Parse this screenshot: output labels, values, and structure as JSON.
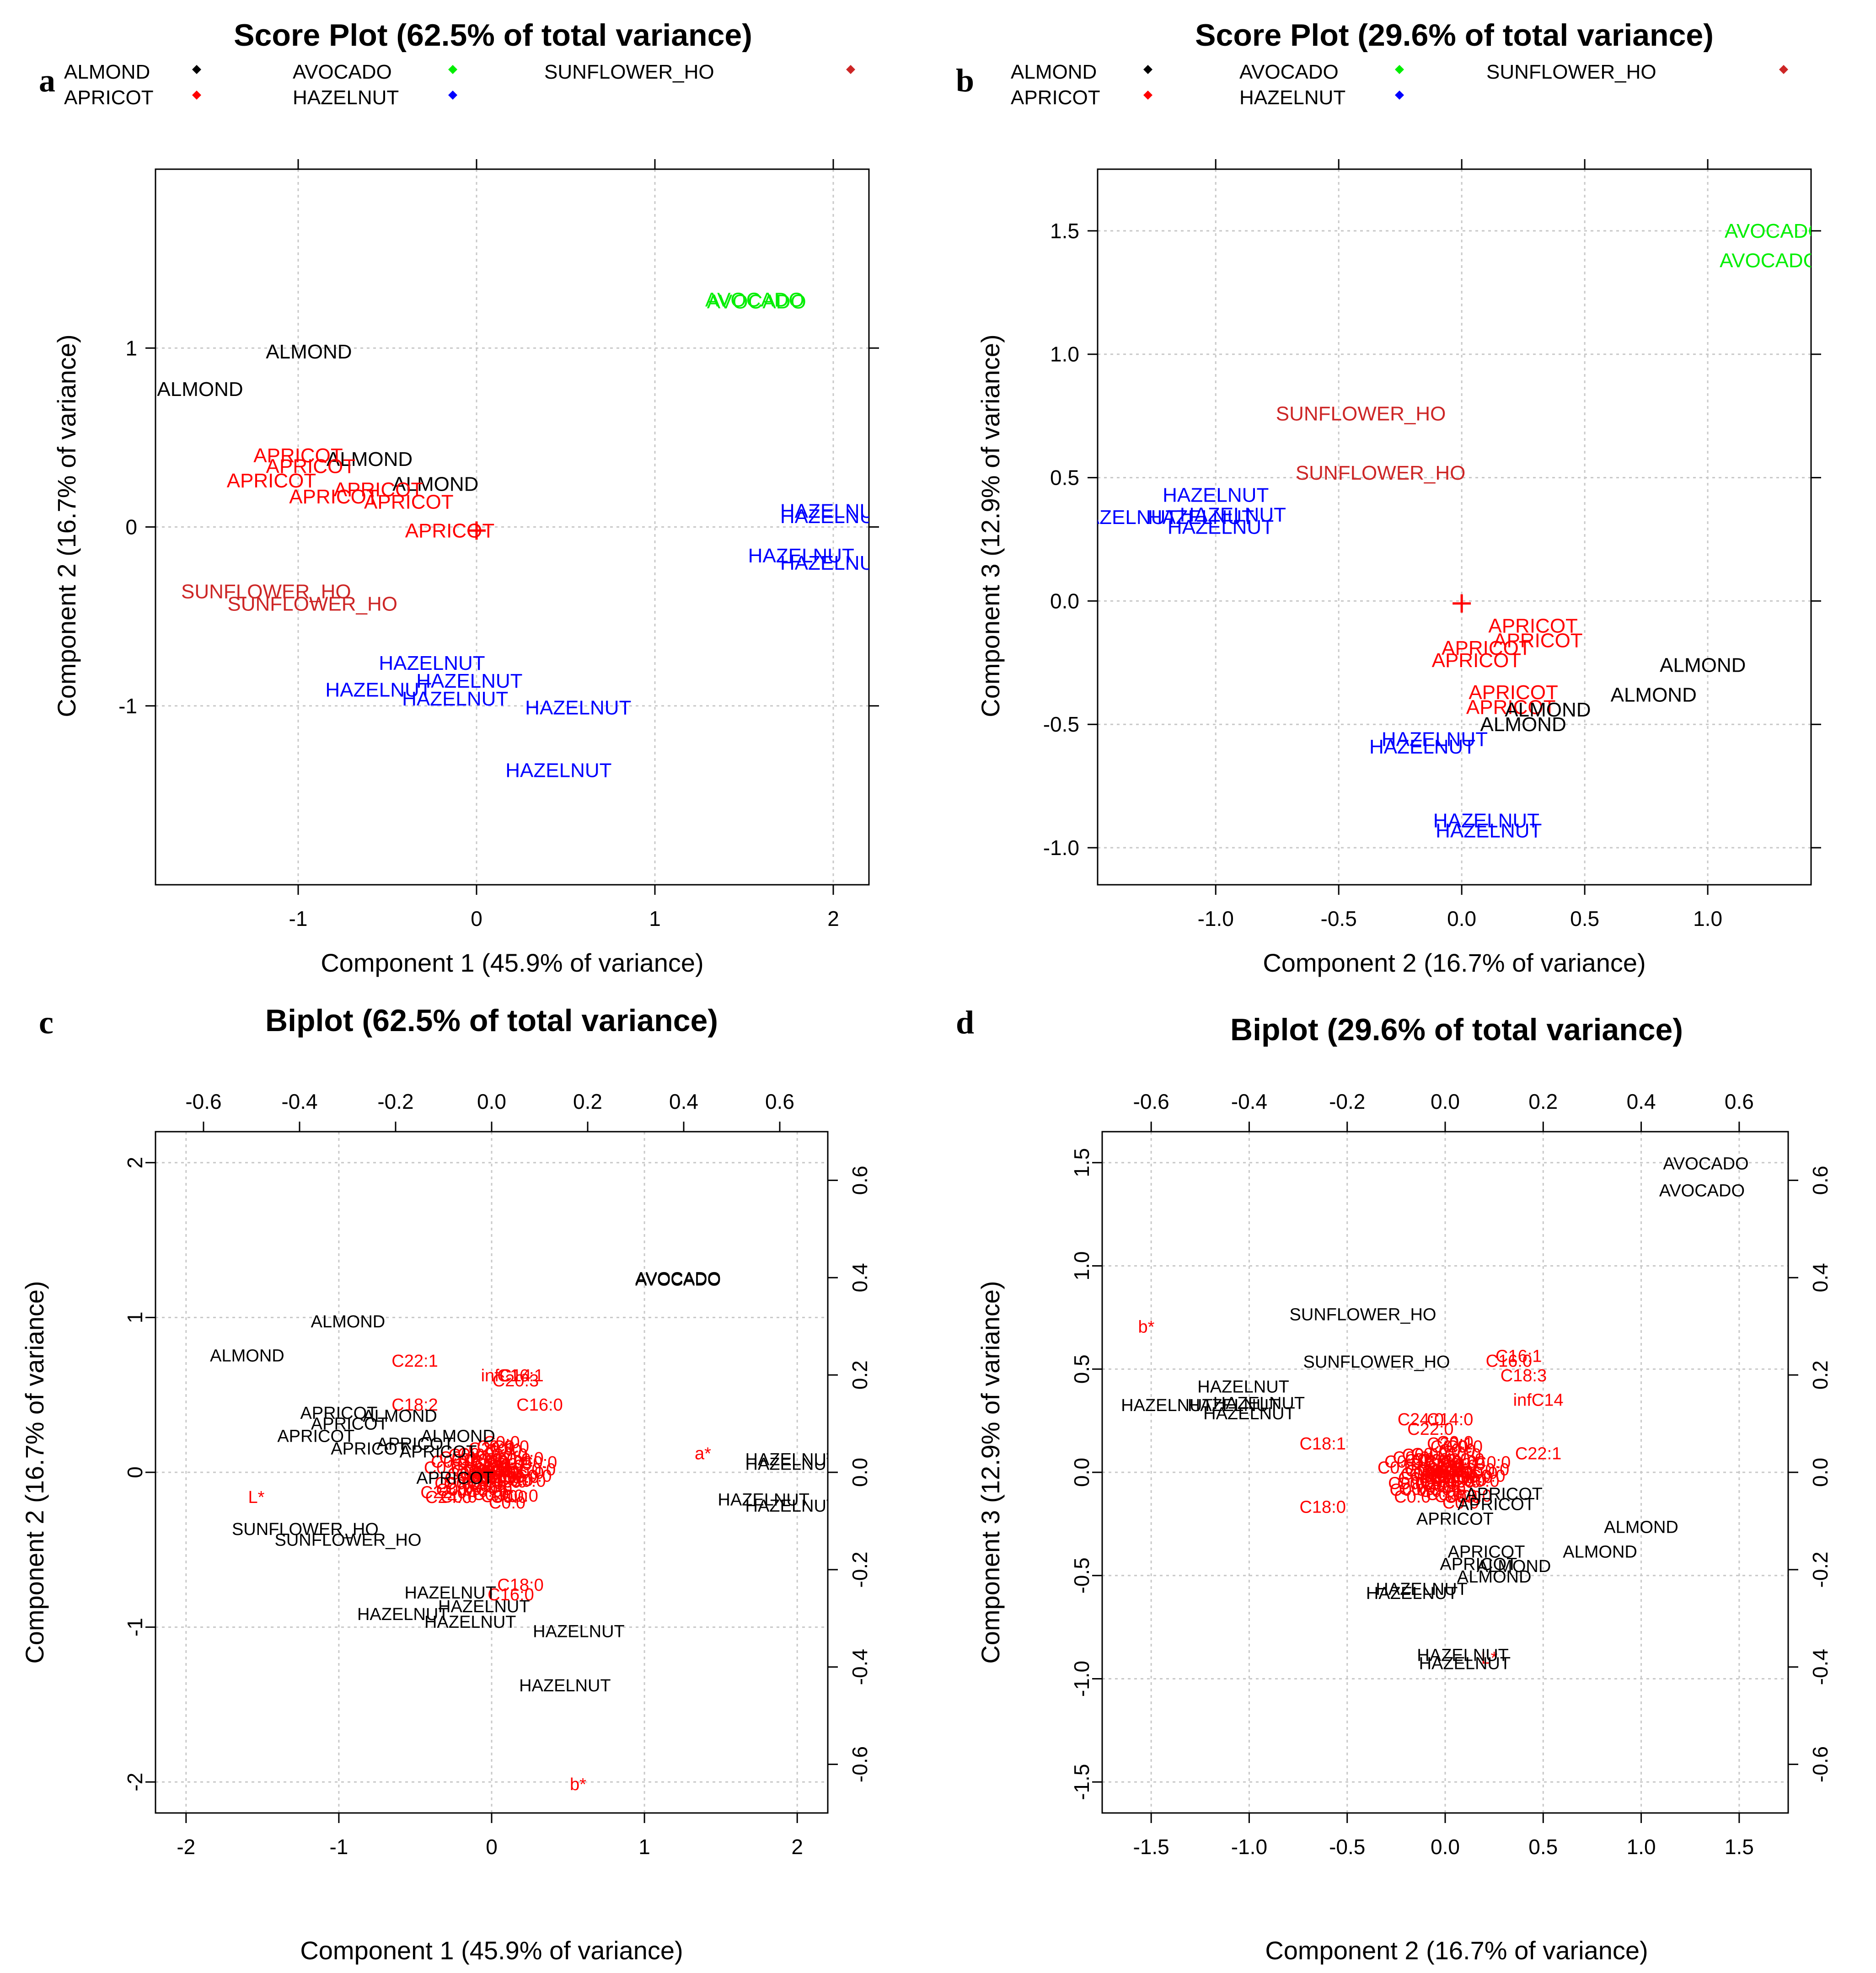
{
  "colors": {
    "ALMOND": "#000000",
    "APRICOT": "#ff0000",
    "AVOCADO": "#00ee00",
    "HAZELNUT": "#0000ff",
    "SUNFLOWER_HO": "#cd2626",
    "loading": "#ff0000",
    "biplot_scores": "#000000",
    "grid": "#c8c8c8"
  },
  "legend_entries": [
    "ALMOND",
    "APRICOT",
    "AVOCADO",
    "HAZELNUT",
    "SUNFLOWER_HO"
  ],
  "chart_data": [
    {
      "id": "a",
      "panel_letter": "a",
      "type": "scatter",
      "title": "Score Plot (62.5% of total variance)",
      "xlabel": "Component 1 (45.9% of variance)",
      "ylabel": "Component 2 (16.7% of variance)",
      "xlim": [
        -1.8,
        2.2
      ],
      "ylim": [
        -2.0,
        2.0
      ],
      "xticks": [
        -1,
        0,
        1,
        2
      ],
      "yticks": [
        -1,
        0,
        1
      ],
      "grid": true,
      "legend": true,
      "points": [
        {
          "label": "AVOCADO",
          "group": "AVOCADO",
          "x": 1.56,
          "y": 1.27
        },
        {
          "label": "AVOCADO",
          "group": "AVOCADO",
          "x": 1.57,
          "y": 1.26
        },
        {
          "label": "ALMOND",
          "group": "ALMOND",
          "x": -0.94,
          "y": 0.98
        },
        {
          "label": "ALMOND",
          "group": "ALMOND",
          "x": -1.55,
          "y": 0.77
        },
        {
          "label": "ALMOND",
          "group": "ALMOND",
          "x": -0.6,
          "y": 0.38
        },
        {
          "label": "ALMOND",
          "group": "ALMOND",
          "x": -0.23,
          "y": 0.24
        },
        {
          "label": "APRICOT",
          "group": "APRICOT",
          "x": -1.0,
          "y": 0.4
        },
        {
          "label": "APRICOT",
          "group": "APRICOT",
          "x": -0.93,
          "y": 0.34
        },
        {
          "label": "APRICOT",
          "group": "APRICOT",
          "x": -1.15,
          "y": 0.26
        },
        {
          "label": "APRICOT",
          "group": "APRICOT",
          "x": -0.8,
          "y": 0.17
        },
        {
          "label": "APRICOT",
          "group": "APRICOT",
          "x": -0.55,
          "y": 0.21
        },
        {
          "label": "APRICOT",
          "group": "APRICOT",
          "x": -0.38,
          "y": 0.14
        },
        {
          "label": "APRICOT",
          "group": "APRICOT",
          "x": -0.15,
          "y": -0.02
        },
        {
          "label": "HAZELNUT",
          "group": "HAZELNUT",
          "x": 2.0,
          "y": 0.09
        },
        {
          "label": "HAZELNUT",
          "group": "HAZELNUT",
          "x": 2.0,
          "y": 0.06
        },
        {
          "label": "HAZELNUT",
          "group": "HAZELNUT",
          "x": 1.82,
          "y": -0.16
        },
        {
          "label": "HAZELNUT",
          "group": "HAZELNUT",
          "x": 2.0,
          "y": -0.2
        },
        {
          "label": "HAZELNUT",
          "group": "HAZELNUT",
          "x": -0.25,
          "y": -0.76
        },
        {
          "label": "HAZELNUT",
          "group": "HAZELNUT",
          "x": -0.04,
          "y": -0.86
        },
        {
          "label": "HAZELNUT",
          "group": "HAZELNUT",
          "x": -0.55,
          "y": -0.91
        },
        {
          "label": "HAZELNUT",
          "group": "HAZELNUT",
          "x": -0.12,
          "y": -0.96
        },
        {
          "label": "HAZELNUT",
          "group": "HAZELNUT",
          "x": 0.57,
          "y": -1.01
        },
        {
          "label": "HAZELNUT",
          "group": "HAZELNUT",
          "x": 0.46,
          "y": -1.36
        },
        {
          "label": "SUNFLOWER_HO",
          "group": "SUNFLOWER_HO",
          "x": -1.18,
          "y": -0.36
        },
        {
          "label": "SUNFLOWER_HO",
          "group": "SUNFLOWER_HO",
          "x": -0.92,
          "y": -0.43
        }
      ],
      "centroid": {
        "x": 0.0,
        "y": -0.02
      }
    },
    {
      "id": "b",
      "panel_letter": "b",
      "type": "scatter",
      "title": "Score Plot (29.6% of total variance)",
      "xlabel": "Component 2 (16.7% of variance)",
      "ylabel": "Component 3 (12.9% of variance)",
      "xlim": [
        -1.48,
        1.42
      ],
      "ylim": [
        -1.15,
        1.75
      ],
      "xticks": [
        -1.0,
        -0.5,
        0.0,
        0.5,
        1.0
      ],
      "yticks": [
        -1.0,
        -0.5,
        0.0,
        0.5,
        1.0,
        1.5
      ],
      "grid": true,
      "legend": true,
      "points": [
        {
          "label": "AVOCADO",
          "group": "AVOCADO",
          "x": 1.27,
          "y": 1.5
        },
        {
          "label": "AVOCADO",
          "group": "AVOCADO",
          "x": 1.25,
          "y": 1.38
        },
        {
          "label": "SUNFLOWER_HO",
          "group": "SUNFLOWER_HO",
          "x": -0.41,
          "y": 0.76
        },
        {
          "label": "SUNFLOWER_HO",
          "group": "SUNFLOWER_HO",
          "x": -0.33,
          "y": 0.52
        },
        {
          "label": "HAZELNUT",
          "group": "HAZELNUT",
          "x": -1.0,
          "y": 0.43
        },
        {
          "label": "HAZELNUT",
          "group": "HAZELNUT",
          "x": -1.37,
          "y": 0.34
        },
        {
          "label": "HAZELNUT",
          "group": "HAZELNUT",
          "x": -1.06,
          "y": 0.34
        },
        {
          "label": "HAZELNUT",
          "group": "HAZELNUT",
          "x": -0.93,
          "y": 0.35
        },
        {
          "label": "HAZELNUT",
          "group": "HAZELNUT",
          "x": -0.98,
          "y": 0.3
        },
        {
          "label": "HAZELNUT",
          "group": "HAZELNUT",
          "x": -0.11,
          "y": -0.56
        },
        {
          "label": "HAZELNUT",
          "group": "HAZELNUT",
          "x": -0.16,
          "y": -0.59
        },
        {
          "label": "HAZELNUT",
          "group": "HAZELNUT",
          "x": 0.1,
          "y": -0.89
        },
        {
          "label": "HAZELNUT",
          "group": "HAZELNUT",
          "x": 0.11,
          "y": -0.93
        },
        {
          "label": "APRICOT",
          "group": "APRICOT",
          "x": 0.29,
          "y": -0.1
        },
        {
          "label": "APRICOT",
          "group": "APRICOT",
          "x": 0.31,
          "y": -0.16
        },
        {
          "label": "APRICOT",
          "group": "APRICOT",
          "x": 0.1,
          "y": -0.19
        },
        {
          "label": "APRICOT",
          "group": "APRICOT",
          "x": 0.06,
          "y": -0.24
        },
        {
          "label": "APRICOT",
          "group": "APRICOT",
          "x": 0.21,
          "y": -0.37
        },
        {
          "label": "APRICOT",
          "group": "APRICOT",
          "x": 0.2,
          "y": -0.43
        },
        {
          "label": "ALMOND",
          "group": "ALMOND",
          "x": 0.98,
          "y": -0.26
        },
        {
          "label": "ALMOND",
          "group": "ALMOND",
          "x": 0.78,
          "y": -0.38
        },
        {
          "label": "ALMOND",
          "group": "ALMOND",
          "x": 0.35,
          "y": -0.44
        },
        {
          "label": "ALMOND",
          "group": "ALMOND",
          "x": 0.25,
          "y": -0.5
        }
      ],
      "centroid": {
        "x": 0.0,
        "y": -0.01
      }
    },
    {
      "id": "c",
      "panel_letter": "c",
      "type": "scatter",
      "subtype": "biplot",
      "title": "Biplot (62.5% of total variance)",
      "xlabel": "Component 1 (45.9% of variance)",
      "ylabel": "Component 2 (16.7% of variance)",
      "xlim": [
        -2.2,
        2.2
      ],
      "ylim": [
        -2.2,
        2.2
      ],
      "xticks": [
        -2,
        -1,
        0,
        1,
        2
      ],
      "yticks": [
        -2,
        -1,
        0,
        1,
        2
      ],
      "top_axis": {
        "lim": [
          -0.7,
          0.7
        ],
        "ticks": [
          -0.6,
          -0.4,
          -0.2,
          0.0,
          0.2,
          0.4,
          0.6
        ]
      },
      "right_axis": {
        "lim": [
          -0.7,
          0.7
        ],
        "ticks": [
          -0.6,
          -0.4,
          -0.2,
          0.0,
          0.2,
          0.4,
          0.6
        ]
      },
      "grid": true,
      "points": [
        {
          "label": "AVOCADO",
          "x": 1.22,
          "y": 1.26
        },
        {
          "label": "AVOCADO",
          "x": 1.22,
          "y": 1.25
        },
        {
          "label": "ALMOND",
          "x": -0.94,
          "y": 0.98
        },
        {
          "label": "ALMOND",
          "x": -1.6,
          "y": 0.76
        },
        {
          "label": "ALMOND",
          "x": -0.6,
          "y": 0.37
        },
        {
          "label": "ALMOND",
          "x": -0.22,
          "y": 0.24
        },
        {
          "label": "APRICOT",
          "x": -1.0,
          "y": 0.39
        },
        {
          "label": "APRICOT",
          "x": -0.93,
          "y": 0.32
        },
        {
          "label": "APRICOT",
          "x": -1.15,
          "y": 0.24
        },
        {
          "label": "APRICOT",
          "x": -0.8,
          "y": 0.16
        },
        {
          "label": "APRICOT",
          "x": -0.5,
          "y": 0.19
        },
        {
          "label": "APRICOT",
          "x": -0.35,
          "y": 0.14
        },
        {
          "label": "APRICOT",
          "x": -0.24,
          "y": -0.03
        },
        {
          "label": "HAZELNUT",
          "x": 1.96,
          "y": 0.09
        },
        {
          "label": "HAZELNUT",
          "x": 1.96,
          "y": 0.06
        },
        {
          "label": "HAZELNUT",
          "x": 1.78,
          "y": -0.17
        },
        {
          "label": "HAZELNUT",
          "x": 1.96,
          "y": -0.21
        },
        {
          "label": "HAZELNUT",
          "x": -0.27,
          "y": -0.77
        },
        {
          "label": "HAZELNUT",
          "x": -0.05,
          "y": -0.86
        },
        {
          "label": "HAZELNUT",
          "x": -0.58,
          "y": -0.91
        },
        {
          "label": "HAZELNUT",
          "x": -0.14,
          "y": -0.96
        },
        {
          "label": "HAZELNUT",
          "x": 0.57,
          "y": -1.02
        },
        {
          "label": "HAZELNUT",
          "x": 0.48,
          "y": -1.37
        },
        {
          "label": "SUNFLOWER_HO",
          "x": -1.22,
          "y": -0.36
        },
        {
          "label": "SUNFLOWER_HO",
          "x": -0.94,
          "y": -0.43
        }
      ],
      "loadings": [
        {
          "label": "C22:1",
          "x": -0.16,
          "y": 0.23
        },
        {
          "label": "infC14",
          "x": 0.03,
          "y": 0.2
        },
        {
          "label": "C20:3",
          "x": 0.05,
          "y": 0.19
        },
        {
          "label": "C16:1",
          "x": 0.06,
          "y": 0.2
        },
        {
          "label": "C18:2",
          "x": -0.16,
          "y": 0.14
        },
        {
          "label": "C16:0",
          "x": 0.1,
          "y": 0.14
        },
        {
          "label": "C20:1",
          "x": 0.0,
          "y": 0.05
        },
        {
          "label": "C14:0",
          "x": 0.06,
          "y": 0.03
        },
        {
          "label": "C22:0",
          "x": -0.1,
          "y": -0.04
        },
        {
          "label": "C24:0",
          "x": -0.09,
          "y": -0.05
        },
        {
          "label": "C18:0",
          "x": 0.06,
          "y": -0.23
        },
        {
          "label": "C16:0",
          "x": 0.04,
          "y": -0.25
        },
        {
          "label": "a*",
          "x": 0.44,
          "y": 0.04
        },
        {
          "label": "L*",
          "x": -0.49,
          "y": -0.05
        },
        {
          "label": "b*",
          "x": 0.18,
          "y": -0.64
        }
      ]
    },
    {
      "id": "d",
      "panel_letter": "d",
      "type": "scatter",
      "subtype": "biplot",
      "title": "Biplot (29.6% of total variance)",
      "xlabel": "Component 2 (16.7% of variance)",
      "ylabel": "Component 3 (12.9% of variance)",
      "xlim": [
        -1.75,
        1.75
      ],
      "ylim": [
        -1.65,
        1.65
      ],
      "xticks": [
        -1.5,
        -1.0,
        -0.5,
        0.0,
        0.5,
        1.0,
        1.5
      ],
      "yticks": [
        -1.5,
        -1.0,
        -0.5,
        0.0,
        0.5,
        1.0,
        1.5
      ],
      "top_axis": {
        "lim": [
          -0.7,
          0.7
        ],
        "ticks": [
          -0.6,
          -0.4,
          -0.2,
          0.0,
          0.2,
          0.4,
          0.6
        ]
      },
      "right_axis": {
        "lim": [
          -0.7,
          0.7
        ],
        "ticks": [
          -0.6,
          -0.4,
          -0.2,
          0.0,
          0.2,
          0.4,
          0.6
        ]
      },
      "grid": true,
      "points": [
        {
          "label": "AVOCADO",
          "x": 1.33,
          "y": 1.5
        },
        {
          "label": "AVOCADO",
          "x": 1.31,
          "y": 1.37
        },
        {
          "label": "SUNFLOWER_HO",
          "x": -0.42,
          "y": 0.77
        },
        {
          "label": "SUNFLOWER_HO",
          "x": -0.35,
          "y": 0.54
        },
        {
          "label": "HAZELNUT",
          "x": -1.03,
          "y": 0.42
        },
        {
          "label": "HAZELNUT",
          "x": -1.42,
          "y": 0.33
        },
        {
          "label": "HAZELNUT",
          "x": -1.08,
          "y": 0.33
        },
        {
          "label": "HAZELNUT",
          "x": -0.95,
          "y": 0.34
        },
        {
          "label": "HAZELNUT",
          "x": -1.0,
          "y": 0.29
        },
        {
          "label": "HAZELNUT",
          "x": -0.12,
          "y": -0.56
        },
        {
          "label": "HAZELNUT",
          "x": -0.17,
          "y": -0.58
        },
        {
          "label": "HAZELNUT",
          "x": 0.09,
          "y": -0.88
        },
        {
          "label": "HAZELNUT",
          "x": 0.1,
          "y": -0.92
        },
        {
          "label": "APRICOT",
          "x": 0.3,
          "y": -0.1
        },
        {
          "label": "APRICOT",
          "x": 0.26,
          "y": -0.15
        },
        {
          "label": "APRICOT",
          "x": 0.05,
          "y": -0.22
        },
        {
          "label": "APRICOT",
          "x": 0.21,
          "y": -0.38
        },
        {
          "label": "APRICOT",
          "x": 0.17,
          "y": -0.44
        },
        {
          "label": "ALMOND",
          "x": 1.0,
          "y": -0.26
        },
        {
          "label": "ALMOND",
          "x": 0.79,
          "y": -0.38
        },
        {
          "label": "ALMOND",
          "x": 0.35,
          "y": -0.45
        },
        {
          "label": "ALMOND",
          "x": 0.25,
          "y": -0.5
        }
      ],
      "loadings": [
        {
          "label": "b*",
          "x": -0.61,
          "y": 0.3
        },
        {
          "label": "C16:0",
          "x": 0.13,
          "y": 0.23
        },
        {
          "label": "C16:1",
          "x": 0.15,
          "y": 0.24
        },
        {
          "label": "C18:3",
          "x": 0.16,
          "y": 0.2
        },
        {
          "label": "infC14",
          "x": 0.19,
          "y": 0.15
        },
        {
          "label": "C24:0",
          "x": -0.05,
          "y": 0.11
        },
        {
          "label": "C14:0",
          "x": 0.01,
          "y": 0.11
        },
        {
          "label": "C22:0",
          "x": -0.03,
          "y": 0.09
        },
        {
          "label": "C20:1",
          "x": 0.01,
          "y": 0.06
        },
        {
          "label": "C18:1",
          "x": -0.25,
          "y": 0.06
        },
        {
          "label": "C22:1",
          "x": 0.19,
          "y": 0.04
        },
        {
          "label": "C18:0",
          "x": -0.25,
          "y": -0.07
        },
        {
          "label": "L*",
          "x": 0.09,
          "y": -0.38
        }
      ]
    }
  ]
}
